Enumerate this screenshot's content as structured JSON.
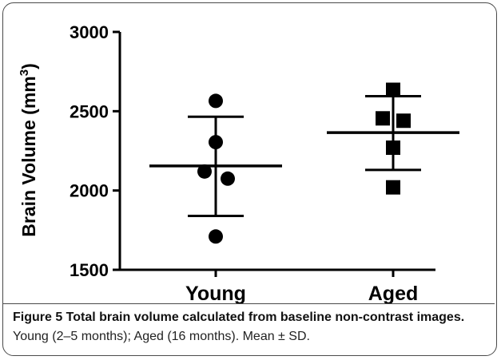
{
  "chart_data": {
    "type": "scatter",
    "ylabel": "Brain Volume (mm",
    "ylabel_superscript": "3",
    "ylabel_close": ")",
    "ylim": [
      1500,
      3000
    ],
    "yticks": [
      "1500",
      "2000",
      "2500",
      "3000"
    ],
    "categories": [
      "Young",
      "Aged"
    ],
    "series": [
      {
        "name": "Young",
        "marker": "circle",
        "values": [
          2565,
          2305,
          2120,
          2075,
          1710
        ],
        "mean": 2155,
        "sd_upper": 2465,
        "sd_lower": 1840
      },
      {
        "name": "Aged",
        "marker": "square",
        "values": [
          2635,
          2455,
          2440,
          2270,
          2020
        ],
        "mean": 2365,
        "sd_upper": 2595,
        "sd_lower": 2130
      }
    ],
    "grid": false,
    "color": "#000000"
  },
  "caption": {
    "bold": "Figure 5 Total brain volume calculated from baseline non-contrast images.",
    "normal": " Young (2–5 months); Aged (16 months). Mean ± SD."
  }
}
